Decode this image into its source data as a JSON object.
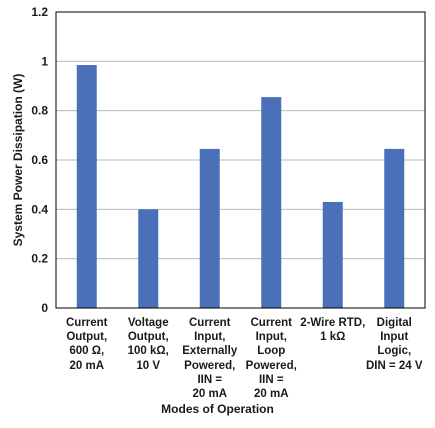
{
  "chart_data": {
    "type": "bar",
    "categories": [
      "Current\nOutput,\n600 Ω,\n20 mA",
      "Voltage\nOutput,\n100 kΩ,\n10 V",
      "Current\nInput,\nExternally\nPowered,\nIIN =\n20 mA",
      "Current\nInput,\nLoop\nPowered,\nIIN =\n20 mA",
      "2-Wire RTD,\n1 kΩ",
      "Digital\nInput\nLogic,\nDIN = 24 V"
    ],
    "values": [
      0.985,
      0.4,
      0.645,
      0.855,
      0.43,
      0.645
    ],
    "xlabel": "Modes of Operation",
    "ylabel": "System Power Dissipation (W)",
    "ylim": [
      0,
      1.2
    ],
    "yticks": [
      "0",
      "0.2",
      "0.4",
      "0.6",
      "0.8",
      "1",
      "1.2"
    ],
    "grid": true,
    "legend": "none",
    "colors": {
      "bar": "#4a71b8",
      "grid": "#b9b9b9",
      "axis": "#000000"
    }
  }
}
